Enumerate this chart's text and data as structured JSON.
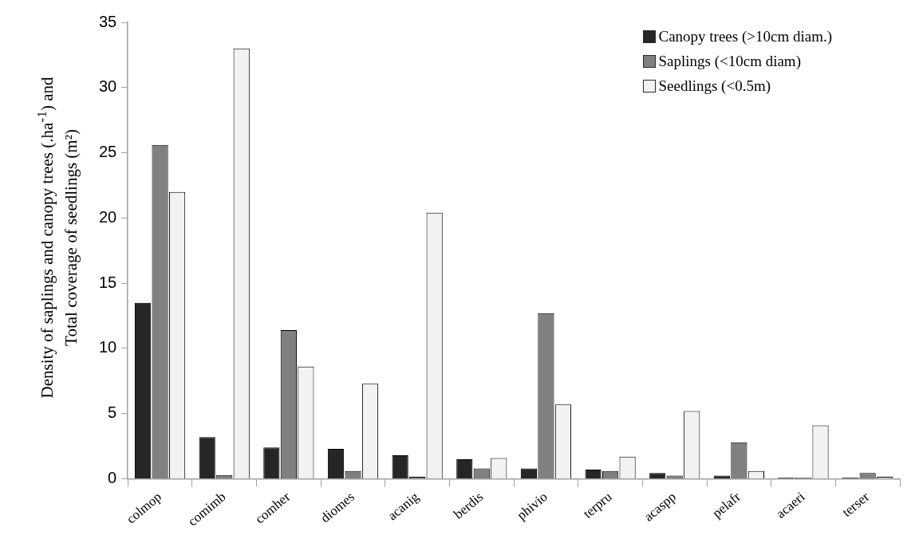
{
  "chart_data": {
    "type": "bar",
    "ylabel": "Density of saplings and canopy  trees (.ha$^{-1}$) and Total coverage of seedlings (m²)",
    "categories": [
      "colmop",
      "comimb",
      "comher",
      "diomes",
      "acanig",
      "berdis",
      "phivio",
      "terpru",
      "acaspp",
      "pelafr",
      "acaeri",
      "terser"
    ],
    "series": [
      {
        "name": "Canopy trees (>10cm diam.)",
        "color": "#262626",
        "values": [
          13.5,
          3.2,
          2.4,
          2.3,
          1.8,
          1.5,
          0.8,
          0.7,
          0.45,
          0.25,
          0.1,
          0.1
        ]
      },
      {
        "name": "Saplings (<10cm diam)",
        "color": "#808080",
        "values": [
          25.6,
          0.3,
          11.4,
          0.6,
          0.15,
          0.8,
          12.7,
          0.6,
          0.25,
          2.8,
          0.1,
          0.45
        ]
      },
      {
        "name": "Seedlings (<0.5m)",
        "color": "#f2f2f2",
        "values": [
          22.0,
          33.0,
          8.6,
          7.3,
          20.4,
          1.6,
          5.7,
          1.7,
          5.2,
          0.6,
          4.1,
          0.15
        ]
      }
    ],
    "ylim": [
      0,
      35
    ],
    "yticks": [
      0,
      5,
      10,
      15,
      20,
      25,
      30,
      35
    ],
    "grid": false,
    "legend": "top right"
  }
}
